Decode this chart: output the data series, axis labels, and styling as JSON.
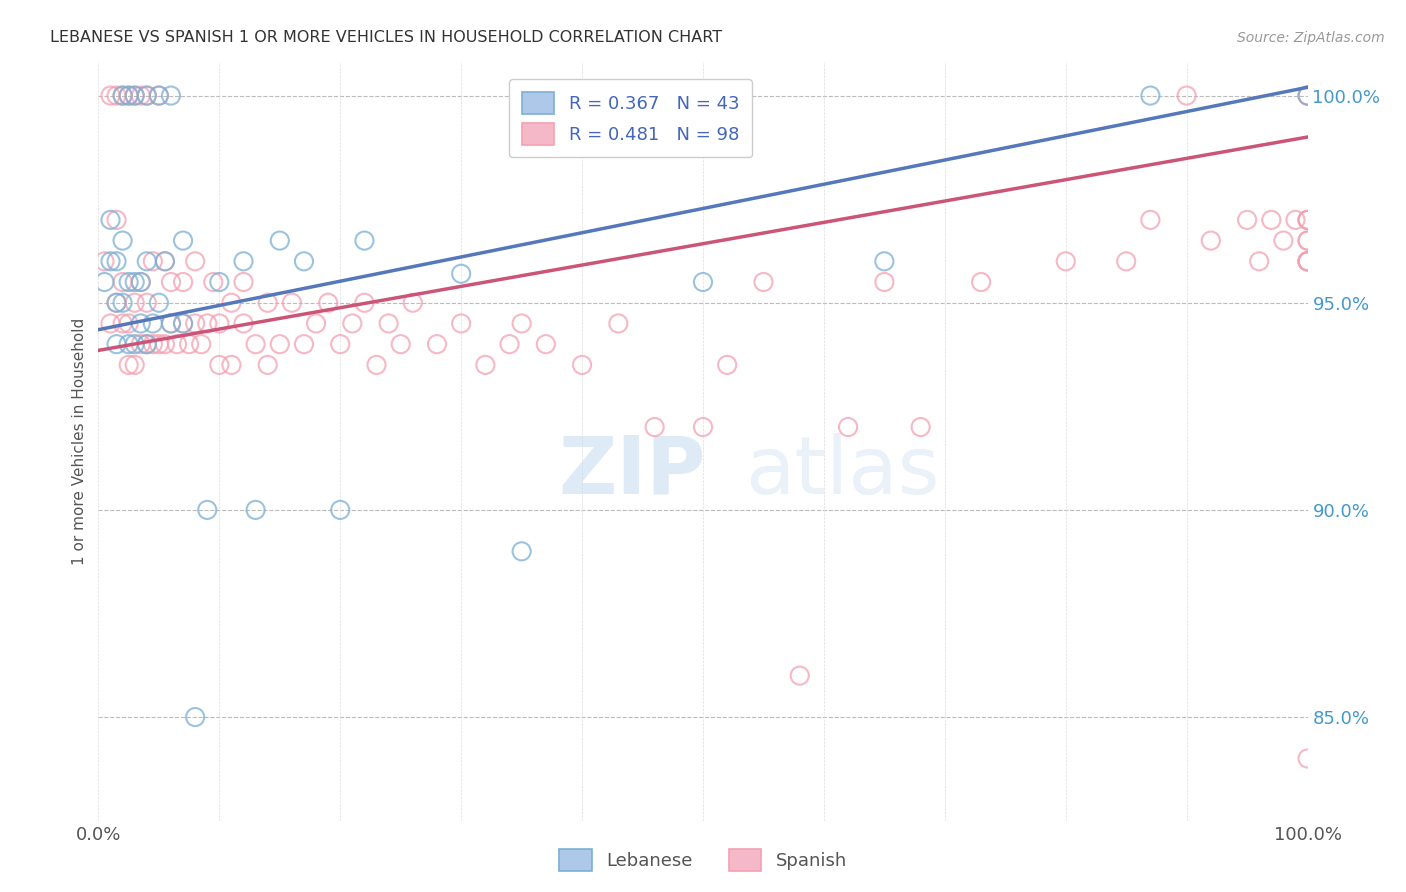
{
  "title": "LEBANESE VS SPANISH 1 OR MORE VEHICLES IN HOUSEHOLD CORRELATION CHART",
  "source": "Source: ZipAtlas.com",
  "ylabel": "1 or more Vehicles in Household",
  "r_lebanese": 0.367,
  "n_lebanese": 43,
  "r_spanish": 0.481,
  "n_spanish": 98,
  "xlim": [
    0.0,
    1.0
  ],
  "ylim": [
    0.825,
    1.008
  ],
  "x_tick_labels": [
    "0.0%",
    "",
    "",
    "",
    "",
    "",
    "",
    "",
    "",
    "",
    "100.0%"
  ],
  "y_ticks": [
    0.85,
    0.9,
    0.95,
    1.0
  ],
  "right_y_tick_labels": [
    "85.0%",
    "90.0%",
    "95.0%",
    "100.0%"
  ],
  "grid_color": "#bbbbbb",
  "background_color": "#ffffff",
  "blue_color": "#7bafd4",
  "pink_color": "#f4a0b0",
  "blue_line_color": "#5577bb",
  "pink_line_color": "#cc5577",
  "blue_line_x0": 0.0,
  "blue_line_y0": 0.9435,
  "blue_line_x1": 1.0,
  "blue_line_y1": 1.002,
  "pink_line_x0": 0.0,
  "pink_line_y0": 0.9385,
  "pink_line_x1": 1.0,
  "pink_line_y1": 0.99,
  "lebanese_x": [
    0.005,
    0.01,
    0.01,
    0.015,
    0.015,
    0.015,
    0.02,
    0.02,
    0.02,
    0.025,
    0.025,
    0.025,
    0.03,
    0.03,
    0.03,
    0.035,
    0.035,
    0.04,
    0.04,
    0.04,
    0.045,
    0.05,
    0.05,
    0.055,
    0.06,
    0.06,
    0.07,
    0.07,
    0.08,
    0.09,
    0.1,
    0.12,
    0.13,
    0.15,
    0.17,
    0.2,
    0.22,
    0.3,
    0.35,
    0.5,
    0.65,
    0.87,
    1.0
  ],
  "lebanese_y": [
    0.955,
    0.97,
    0.96,
    0.94,
    0.95,
    0.96,
    0.95,
    0.965,
    1.0,
    0.94,
    0.955,
    1.0,
    0.94,
    0.955,
    1.0,
    0.945,
    0.955,
    0.94,
    0.96,
    1.0,
    0.945,
    0.95,
    1.0,
    0.96,
    0.945,
    1.0,
    0.945,
    0.965,
    0.85,
    0.9,
    0.955,
    0.96,
    0.9,
    0.965,
    0.96,
    0.9,
    0.965,
    0.957,
    0.89,
    0.955,
    0.96,
    1.0,
    1.0
  ],
  "spanish_x": [
    0.005,
    0.01,
    0.01,
    0.015,
    0.015,
    0.015,
    0.02,
    0.02,
    0.02,
    0.025,
    0.025,
    0.025,
    0.03,
    0.03,
    0.03,
    0.035,
    0.035,
    0.035,
    0.04,
    0.04,
    0.04,
    0.045,
    0.045,
    0.05,
    0.05,
    0.055,
    0.055,
    0.06,
    0.06,
    0.065,
    0.07,
    0.07,
    0.075,
    0.08,
    0.08,
    0.085,
    0.09,
    0.095,
    0.1,
    0.1,
    0.11,
    0.11,
    0.12,
    0.12,
    0.13,
    0.14,
    0.14,
    0.15,
    0.16,
    0.17,
    0.18,
    0.19,
    0.2,
    0.21,
    0.22,
    0.23,
    0.24,
    0.25,
    0.26,
    0.28,
    0.3,
    0.32,
    0.34,
    0.35,
    0.37,
    0.4,
    0.43,
    0.46,
    0.5,
    0.52,
    0.55,
    0.58,
    0.62,
    0.65,
    0.68,
    0.73,
    0.8,
    0.85,
    0.87,
    0.9,
    0.92,
    0.95,
    0.96,
    0.97,
    0.98,
    0.99,
    1.0,
    1.0,
    1.0,
    1.0,
    1.0,
    1.0,
    1.0,
    1.0,
    1.0,
    1.0,
    1.0,
    1.0
  ],
  "spanish_y": [
    0.96,
    0.945,
    1.0,
    0.97,
    0.95,
    1.0,
    0.945,
    0.955,
    1.0,
    0.935,
    0.945,
    1.0,
    0.935,
    0.95,
    1.0,
    0.94,
    0.955,
    1.0,
    0.94,
    0.95,
    1.0,
    0.94,
    0.96,
    0.94,
    1.0,
    0.94,
    0.96,
    0.945,
    0.955,
    0.94,
    0.945,
    0.955,
    0.94,
    0.945,
    0.96,
    0.94,
    0.945,
    0.955,
    0.935,
    0.945,
    0.935,
    0.95,
    0.945,
    0.955,
    0.94,
    0.935,
    0.95,
    0.94,
    0.95,
    0.94,
    0.945,
    0.95,
    0.94,
    0.945,
    0.95,
    0.935,
    0.945,
    0.94,
    0.95,
    0.94,
    0.945,
    0.935,
    0.94,
    0.945,
    0.94,
    0.935,
    0.945,
    0.92,
    0.92,
    0.935,
    0.955,
    0.86,
    0.92,
    0.955,
    0.92,
    0.955,
    0.96,
    0.96,
    0.97,
    1.0,
    0.965,
    0.97,
    0.96,
    0.97,
    0.965,
    0.97,
    0.96,
    0.965,
    0.97,
    0.96,
    0.97,
    0.96,
    0.97,
    0.96,
    0.84,
    0.965,
    1.0,
    1.0
  ]
}
